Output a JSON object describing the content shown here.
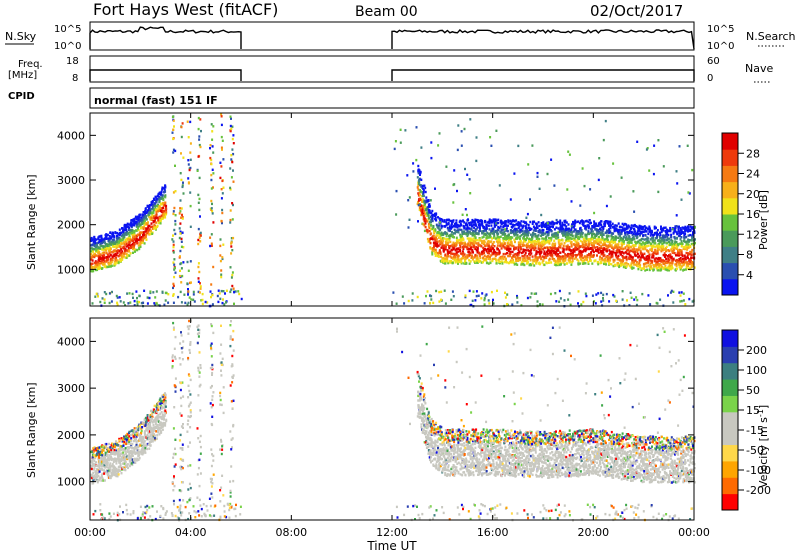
{
  "header": {
    "station": "Fort Hays West (fitACF)",
    "beam": "Beam 00",
    "date": "02/Oct/2017"
  },
  "strips": {
    "nsky": {
      "label": "N.Sky",
      "ticks": [
        "10^5",
        "10^0"
      ]
    },
    "nsearch": {
      "label": "N.Search",
      "ticks": [
        "10^5",
        "10^0"
      ]
    },
    "freq": {
      "label_line1": "Freq.",
      "label_line2": "[MHz]",
      "ticks": [
        "18",
        "8"
      ]
    },
    "nave": {
      "label": "Nave",
      "ticks": [
        "60",
        "0"
      ]
    },
    "cpid": {
      "label": "CPID",
      "mode": "normal (fast) 151 IF"
    }
  },
  "colors": {
    "power": [
      "#0a14f0",
      "#2a4fb0",
      "#3f7f86",
      "#4a9a5a",
      "#67c23c",
      "#f0e21a",
      "#f7b01a",
      "#f57a12",
      "#ee3a0c",
      "#e00000"
    ],
    "velocity": [
      "#ff0000",
      "#ff6a00",
      "#ffa500",
      "#ffd84a",
      "#c8c8c0",
      "#c8c8c0",
      "#7ad34a",
      "#3fa84a",
      "#3c7f80",
      "#2a3fb0",
      "#1010e0"
    ]
  },
  "chart_data": [
    {
      "type": "heatmap",
      "name": "power",
      "ylabel": "Slant Range [km]",
      "yticks": [
        "4000",
        "3000",
        "2000",
        "1000"
      ],
      "ylim": [
        180,
        4500
      ],
      "colorbar": {
        "label": "Power [dB]",
        "ticks": [
          "28",
          "24",
          "20",
          "16",
          "12",
          "8",
          "4"
        ],
        "range": [
          0,
          32
        ]
      },
      "bands": [
        {
          "t": [
            0.0,
            1.0,
            2.0,
            3.0
          ],
          "r": [
            1200,
            1350,
            1750,
            2450
          ],
          "width_km": 350
        },
        {
          "t": [
            13.0,
            13.5,
            14.0,
            16.0,
            18.0,
            20.0,
            22.0,
            24.0
          ],
          "r": [
            2700,
            1700,
            1450,
            1450,
            1400,
            1450,
            1300,
            1300
          ],
          "width_km": 450
        }
      ],
      "data_gap_hours": [
        6.0,
        12.0
      ]
    },
    {
      "type": "heatmap",
      "name": "velocity",
      "ylabel": "Slant Range [km]",
      "yticks": [
        "4000",
        "3000",
        "2000",
        "1000"
      ],
      "ylim": [
        180,
        4500
      ],
      "colorbar": {
        "label": "Velocity [m s^-1]",
        "ticks": [
          "200",
          "100",
          "50",
          "15",
          "-15",
          "-50",
          "-100",
          "-200"
        ]
      },
      "data_gap_hours": [
        6.0,
        12.0
      ]
    }
  ],
  "xaxis": {
    "ticks": [
      "00:00",
      "04:00",
      "08:00",
      "12:00",
      "16:00",
      "20:00",
      "00:00"
    ],
    "label": "Time UT",
    "range_hours": [
      0,
      24
    ]
  }
}
